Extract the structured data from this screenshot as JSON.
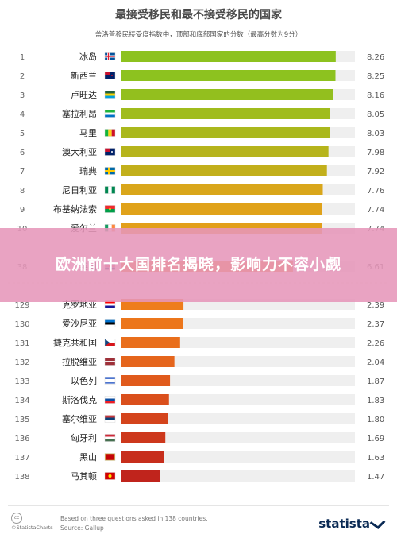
{
  "title": "最接受移民和最不接受移民的国家",
  "subtitle": "盖洛普移民接受度指数中，顶部和底部国家的分数（最高分数为9分）",
  "banner": "欧洲前十大国排名揭晓，影响力不容小觑",
  "footer": {
    "cc_label": "©StatistaCharts",
    "note_line1": "Based on three questions asked in 138 countries.",
    "note_line2": "Source: Gallup",
    "brand": "statista"
  },
  "chart_data": {
    "type": "bar",
    "orientation": "horizontal",
    "xlim": [
      0,
      9
    ],
    "rows": [
      {
        "rank": "1",
        "country": "冰岛",
        "value": 8.26,
        "value_label": "8.26",
        "color": "#8dc21f",
        "flag": "iceland-flag"
      },
      {
        "rank": "2",
        "country": "新西兰",
        "value": 8.25,
        "value_label": "8.25",
        "color": "#8dc21f",
        "flag": "new-zealand-flag"
      },
      {
        "rank": "3",
        "country": "卢旺达",
        "value": 8.16,
        "value_label": "8.16",
        "color": "#93bf1e",
        "flag": "rwanda-flag"
      },
      {
        "rank": "4",
        "country": "塞拉利昂",
        "value": 8.05,
        "value_label": "8.05",
        "color": "#a0bc1c",
        "flag": "sierra-leone-flag"
      },
      {
        "rank": "5",
        "country": "马里",
        "value": 8.03,
        "value_label": "8.03",
        "color": "#aab81c",
        "flag": "mali-flag"
      },
      {
        "rank": "6",
        "country": "澳大利亚",
        "value": 7.98,
        "value_label": "7.98",
        "color": "#b6b41c",
        "flag": "australia-flag"
      },
      {
        "rank": "7",
        "country": "瑞典",
        "value": 7.92,
        "value_label": "7.92",
        "color": "#c2af1b",
        "flag": "sweden-flag"
      },
      {
        "rank": "8",
        "country": "尼日利亚",
        "value": 7.76,
        "value_label": "7.76",
        "color": "#d9a61a",
        "flag": "nigeria-flag"
      },
      {
        "rank": "9",
        "country": "布基纳法索",
        "value": 7.74,
        "value_label": "7.74",
        "color": "#e0a21a",
        "flag": "burkina-faso-flag"
      },
      {
        "rank": "10",
        "country": "爱尔兰",
        "value": 7.74,
        "value_label": "7.74",
        "color": "#e29f1a",
        "flag": "ireland-flag"
      },
      {
        "rank": "38",
        "country": "英国",
        "value": 6.61,
        "value_label": "6.61",
        "color": "#e8801a",
        "flag": "uk-flag"
      },
      {
        "rank": "129",
        "country": "克罗地亚",
        "value": 2.39,
        "value_label": "2.39",
        "color": "#ee7d1b",
        "flag": "croatia-flag"
      },
      {
        "rank": "130",
        "country": "爱沙尼亚",
        "value": 2.37,
        "value_label": "2.37",
        "color": "#ec761b",
        "flag": "estonia-flag"
      },
      {
        "rank": "131",
        "country": "捷克共和国",
        "value": 2.26,
        "value_label": "2.26",
        "color": "#e96e1b",
        "flag": "czech-flag"
      },
      {
        "rank": "132",
        "country": "拉脱维亚",
        "value": 2.04,
        "value_label": "2.04",
        "color": "#e5651c",
        "flag": "latvia-flag"
      },
      {
        "rank": "133",
        "country": "以色列",
        "value": 1.87,
        "value_label": "1.87",
        "color": "#e05a1c",
        "flag": "israel-flag"
      },
      {
        "rank": "134",
        "country": "斯洛伐克",
        "value": 1.83,
        "value_label": "1.83",
        "color": "#da4f1c",
        "flag": "slovakia-flag"
      },
      {
        "rank": "135",
        "country": "塞尔维亚",
        "value": 1.8,
        "value_label": "1.80",
        "color": "#d4441c",
        "flag": "serbia-flag"
      },
      {
        "rank": "136",
        "country": "匈牙利",
        "value": 1.69,
        "value_label": "1.69",
        "color": "#cd381c",
        "flag": "hungary-flag"
      },
      {
        "rank": "137",
        "country": "黑山",
        "value": 1.63,
        "value_label": "1.63",
        "color": "#c72e1c",
        "flag": "montenegro-flag"
      },
      {
        "rank": "138",
        "country": "马其顿",
        "value": 1.47,
        "value_label": "1.47",
        "color": "#c0241c",
        "flag": "macedonia-flag"
      }
    ]
  }
}
